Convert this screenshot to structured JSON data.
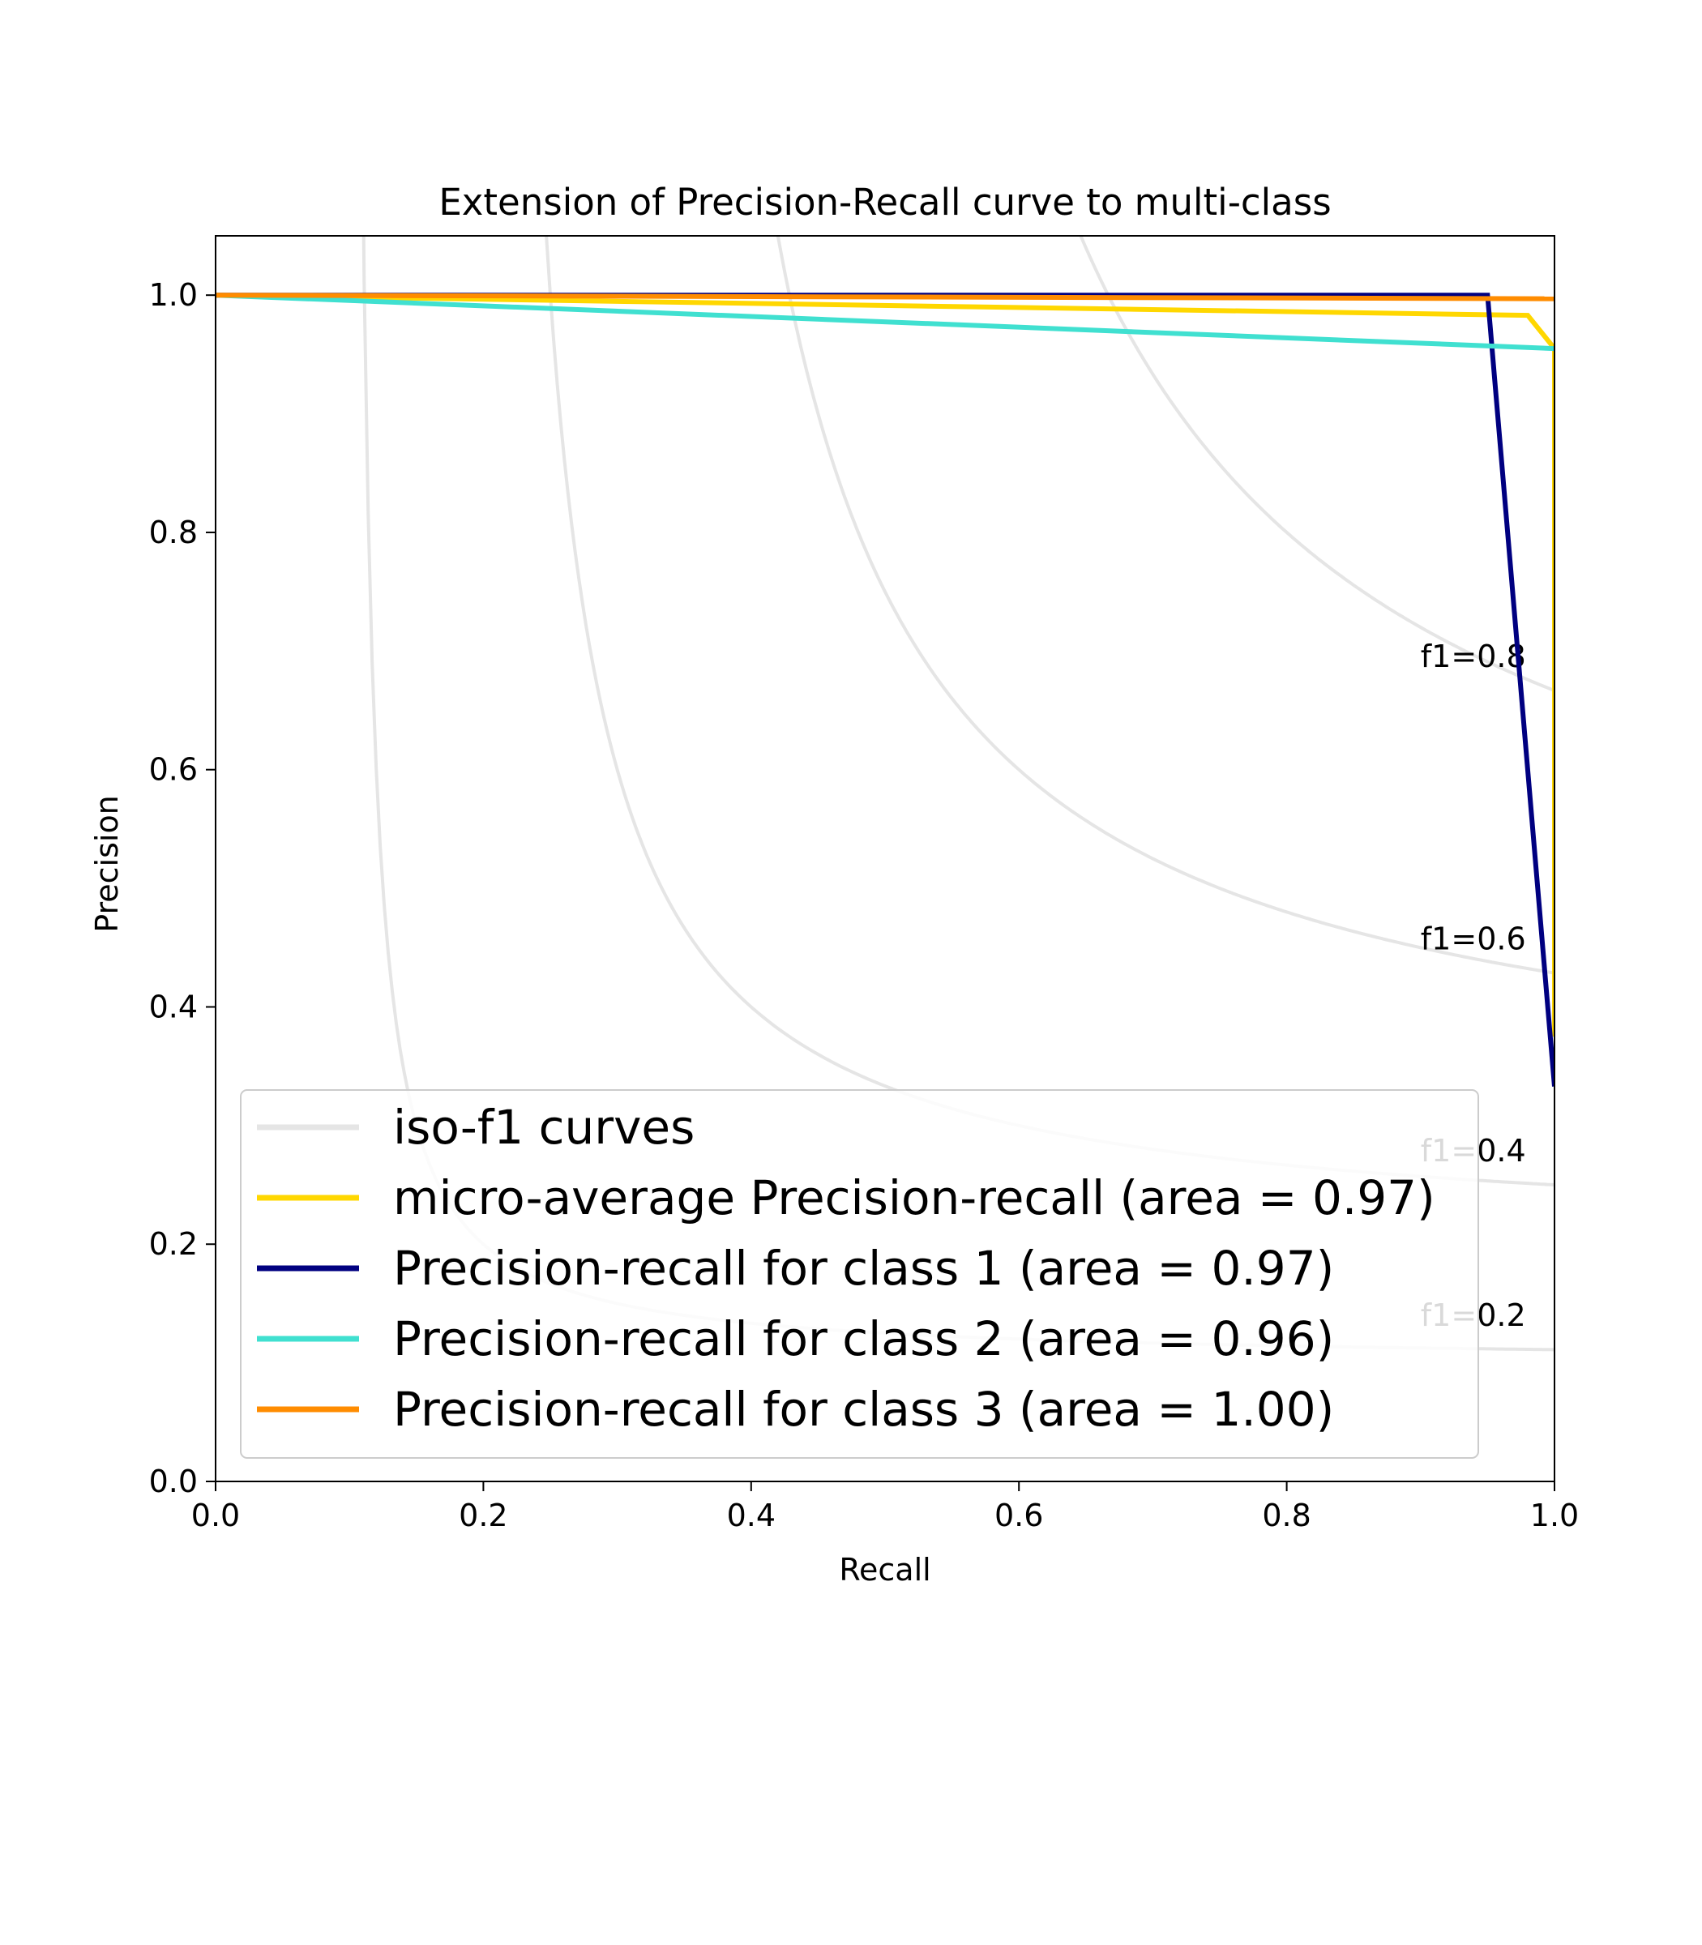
{
  "chart_data": {
    "type": "line",
    "title": "Extension of Precision-Recall curve to multi-class",
    "xlabel": "Recall",
    "ylabel": "Precision",
    "xlim": [
      0.0,
      1.0
    ],
    "ylim": [
      0.0,
      1.05
    ],
    "xticks": [
      "0.0",
      "0.2",
      "0.4",
      "0.6",
      "0.8",
      "1.0"
    ],
    "yticks": [
      "0.0",
      "0.2",
      "0.4",
      "0.6",
      "0.8",
      "1.0"
    ],
    "grid": false,
    "legend_position": "lower-left",
    "iso_f1": {
      "legend_label": "iso-f1 curves",
      "color": "#e5e5e5",
      "values": [
        0.2,
        0.4,
        0.6,
        0.8
      ],
      "labels": [
        "f1=0.2",
        "f1=0.4",
        "f1=0.6",
        "f1=0.8"
      ]
    },
    "series": [
      {
        "name": "micro-average Precision-recall (area = 0.97)",
        "color": "#ffd700",
        "x": [
          0.0,
          0.98,
          0.98,
          1.0,
          1.0
        ],
        "y": [
          1.0,
          0.983,
          0.983,
          0.955,
          0.375
        ]
      },
      {
        "name": "Precision-recall for class 1 (area = 0.97)",
        "color": "#000080",
        "x": [
          0.0,
          0.95,
          1.0
        ],
        "y": [
          1.0,
          1.0,
          0.333
        ]
      },
      {
        "name": "Precision-recall for class 2 (area = 0.96)",
        "color": "#40e0d0",
        "x": [
          0.0,
          1.0
        ],
        "y": [
          1.0,
          0.955
        ]
      },
      {
        "name": "Precision-recall for class 3 (area = 1.00)",
        "color": "#ff8c00",
        "x": [
          0.0,
          1.0
        ],
        "y": [
          1.0,
          0.997
        ]
      }
    ]
  }
}
